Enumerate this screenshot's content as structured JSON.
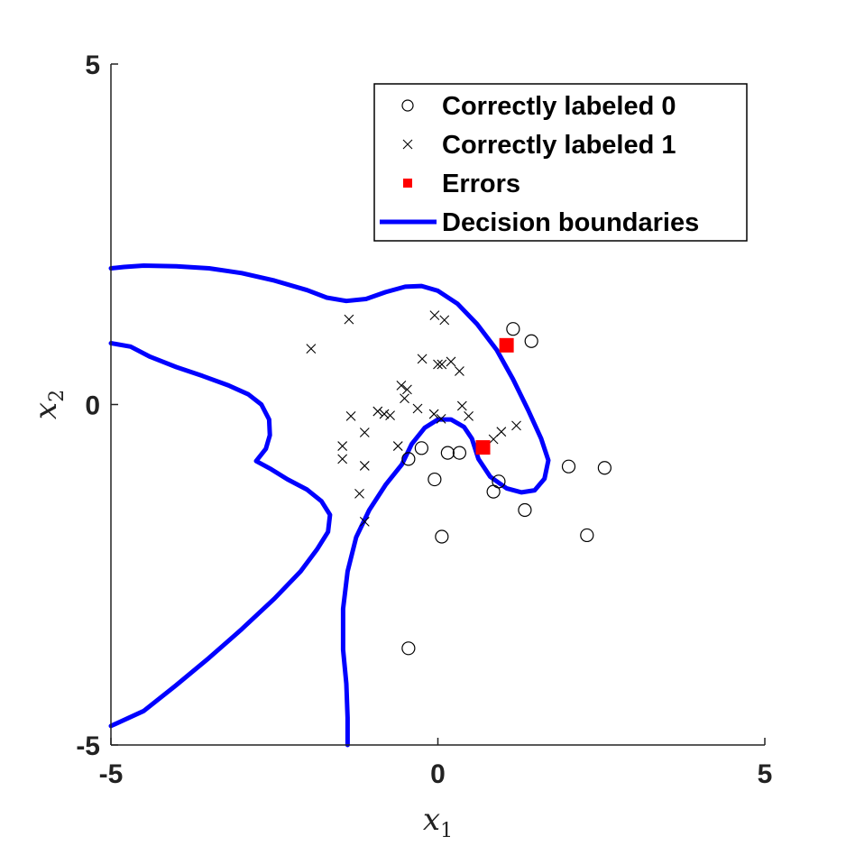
{
  "chart_data": {
    "type": "scatter",
    "xlabel": {
      "base": "x",
      "sub": "1"
    },
    "ylabel": {
      "base": "x",
      "sub": "2"
    },
    "xlim": [
      -5,
      5
    ],
    "ylim": [
      -5,
      5
    ],
    "xticks": [
      -5,
      0,
      5
    ],
    "yticks": [
      -5,
      0,
      5
    ],
    "x_tick_labels": [
      "-5",
      "0",
      "5"
    ],
    "y_tick_labels": [
      "-5",
      "0",
      "5"
    ],
    "grid": false,
    "legend_position": "top-right",
    "legend": [
      {
        "label": "Correctly labeled 0",
        "marker": "circle"
      },
      {
        "label": "Correctly labeled 1",
        "marker": "x"
      },
      {
        "label": "Errors",
        "marker": "square"
      },
      {
        "label": "Decision boundaries",
        "marker": "line"
      }
    ],
    "colors": {
      "class0": "#000000",
      "class1": "#000000",
      "errors": "#ff0000",
      "boundary": "#0000ff",
      "axis": "#222222"
    },
    "series": [
      {
        "name": "Correctly labeled 0",
        "marker": "circle",
        "points": [
          [
            1.15,
            1.11
          ],
          [
            1.43,
            0.93
          ],
          [
            2.0,
            -0.91
          ],
          [
            2.55,
            -0.93
          ],
          [
            0.85,
            -1.28
          ],
          [
            0.93,
            -1.13
          ],
          [
            1.33,
            -1.55
          ],
          [
            2.28,
            -1.92
          ],
          [
            0.06,
            -1.94
          ],
          [
            -0.05,
            -1.1
          ],
          [
            0.15,
            -0.71
          ],
          [
            0.33,
            -0.71
          ],
          [
            -0.25,
            -0.64
          ],
          [
            -0.45,
            -0.8
          ],
          [
            -0.45,
            -3.58
          ]
        ]
      },
      {
        "name": "Correctly labeled 1",
        "marker": "x",
        "points": [
          [
            -1.36,
            1.25
          ],
          [
            -1.94,
            0.82
          ],
          [
            -0.05,
            1.31
          ],
          [
            0.1,
            1.24
          ],
          [
            -0.24,
            0.67
          ],
          [
            0.0,
            0.59
          ],
          [
            0.06,
            0.59
          ],
          [
            0.2,
            0.63
          ],
          [
            0.33,
            0.49
          ],
          [
            -0.56,
            0.28
          ],
          [
            -0.47,
            0.22
          ],
          [
            -0.51,
            0.09
          ],
          [
            -0.31,
            -0.06
          ],
          [
            0.37,
            -0.02
          ],
          [
            0.47,
            -0.17
          ],
          [
            -0.92,
            -0.1
          ],
          [
            -0.82,
            -0.14
          ],
          [
            -0.73,
            -0.16
          ],
          [
            -1.33,
            -0.17
          ],
          [
            -1.12,
            -0.41
          ],
          [
            -0.06,
            -0.14
          ],
          [
            0.05,
            -0.21
          ],
          [
            -0.61,
            -0.61
          ],
          [
            -1.46,
            -0.61
          ],
          [
            -1.46,
            -0.8
          ],
          [
            -1.12,
            -0.9
          ],
          [
            -1.2,
            -1.31
          ],
          [
            -1.12,
            -1.72
          ],
          [
            0.97,
            -0.4
          ],
          [
            1.2,
            -0.31
          ],
          [
            0.85,
            -0.51
          ]
        ]
      },
      {
        "name": "Errors",
        "marker": "square",
        "points": [
          [
            1.05,
            0.87
          ],
          [
            0.69,
            -0.63
          ]
        ]
      }
    ],
    "boundaries": [
      {
        "name": "Decision boundaries",
        "segment": "outer",
        "points": [
          [
            -5.0,
            2.0
          ],
          [
            -4.8,
            2.02
          ],
          [
            -4.5,
            2.04
          ],
          [
            -4.0,
            2.03
          ],
          [
            -3.5,
            2.0
          ],
          [
            -3.0,
            1.93
          ],
          [
            -2.5,
            1.82
          ],
          [
            -2.0,
            1.68
          ],
          [
            -1.7,
            1.57
          ],
          [
            -1.4,
            1.52
          ],
          [
            -1.1,
            1.55
          ],
          [
            -0.8,
            1.65
          ],
          [
            -0.5,
            1.73
          ],
          [
            -0.25,
            1.74
          ],
          [
            0.0,
            1.67
          ],
          [
            0.3,
            1.48
          ],
          [
            0.6,
            1.18
          ],
          [
            0.9,
            0.8
          ],
          [
            1.15,
            0.37
          ],
          [
            1.38,
            -0.08
          ],
          [
            1.58,
            -0.5
          ],
          [
            1.69,
            -0.82
          ],
          [
            1.63,
            -1.09
          ],
          [
            1.48,
            -1.26
          ],
          [
            1.28,
            -1.29
          ],
          [
            1.05,
            -1.23
          ],
          [
            0.8,
            -1.06
          ],
          [
            0.62,
            -0.8
          ],
          [
            0.52,
            -0.5
          ],
          [
            0.4,
            -0.33
          ],
          [
            0.2,
            -0.22
          ],
          [
            0.0,
            -0.22
          ],
          [
            -0.2,
            -0.34
          ],
          [
            -0.4,
            -0.58
          ],
          [
            -0.55,
            -0.88
          ],
          [
            -0.8,
            -1.18
          ],
          [
            -1.05,
            -1.55
          ],
          [
            -1.25,
            -1.95
          ],
          [
            -1.38,
            -2.45
          ],
          [
            -1.45,
            -3.0
          ],
          [
            -1.45,
            -3.6
          ],
          [
            -1.4,
            -4.1
          ],
          [
            -1.38,
            -4.6
          ],
          [
            -1.38,
            -5.0
          ]
        ]
      },
      {
        "name": "Decision boundaries",
        "segment": "inner",
        "points": [
          [
            -5.0,
            0.9
          ],
          [
            -4.7,
            0.85
          ],
          [
            -4.4,
            0.7
          ],
          [
            -4.0,
            0.55
          ],
          [
            -3.6,
            0.42
          ],
          [
            -3.2,
            0.28
          ],
          [
            -2.9,
            0.15
          ],
          [
            -2.7,
            0.0
          ],
          [
            -2.58,
            -0.22
          ],
          [
            -2.57,
            -0.45
          ],
          [
            -2.63,
            -0.65
          ],
          [
            -2.78,
            -0.83
          ],
          [
            -2.55,
            -0.95
          ],
          [
            -2.3,
            -1.1
          ],
          [
            -2.0,
            -1.25
          ],
          [
            -1.78,
            -1.42
          ],
          [
            -1.65,
            -1.62
          ],
          [
            -1.68,
            -1.87
          ],
          [
            -1.85,
            -2.13
          ],
          [
            -2.1,
            -2.45
          ],
          [
            -2.5,
            -2.85
          ],
          [
            -3.0,
            -3.3
          ],
          [
            -3.5,
            -3.72
          ],
          [
            -4.0,
            -4.12
          ],
          [
            -4.5,
            -4.5
          ],
          [
            -5.0,
            -4.72
          ]
        ]
      }
    ]
  }
}
